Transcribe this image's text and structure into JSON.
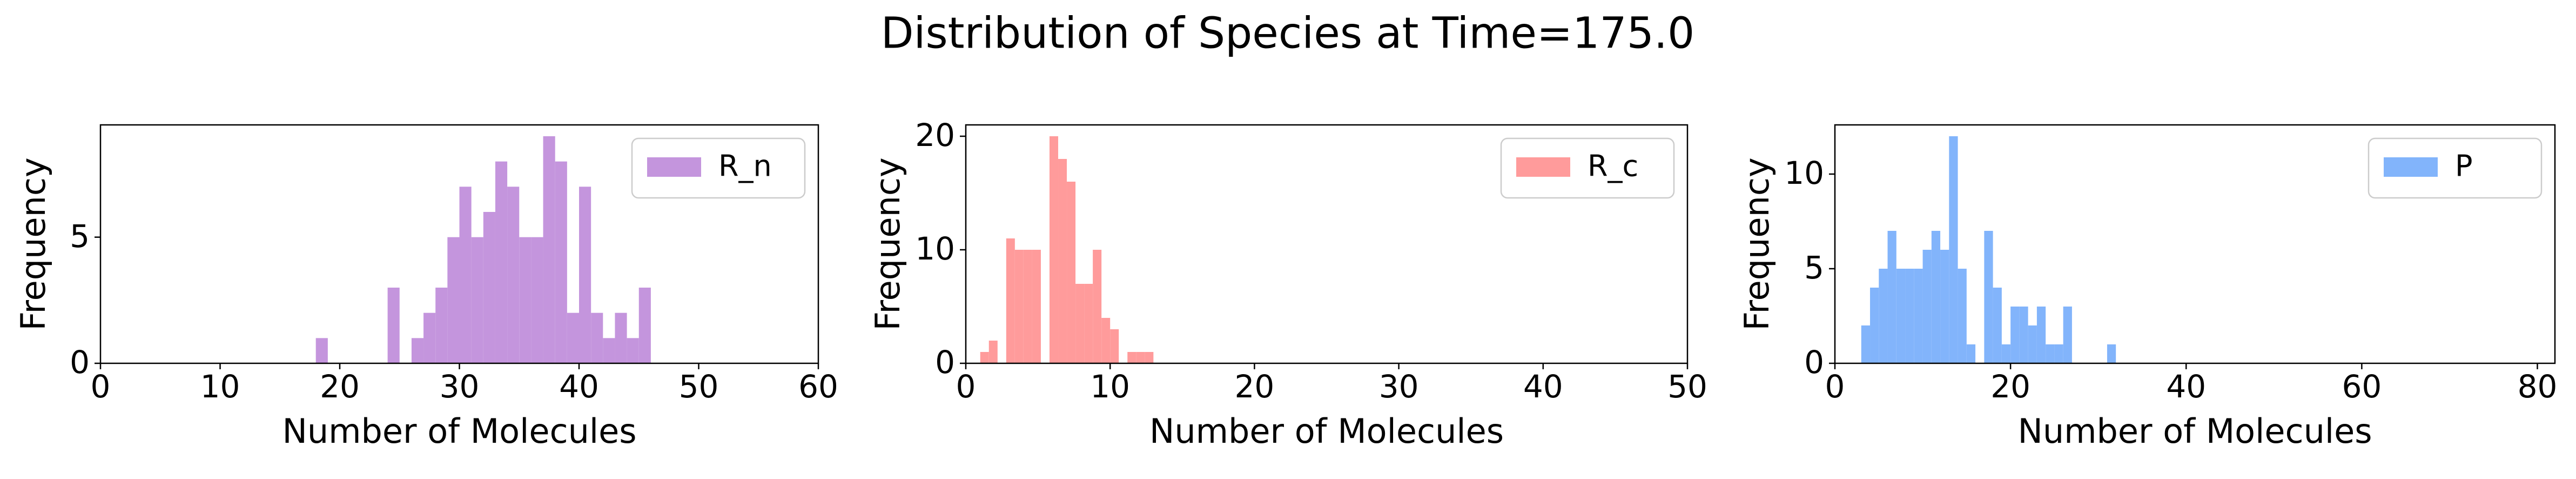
{
  "title": "Distribution of Species at Time=175.0",
  "chart_data": [
    {
      "type": "histogram",
      "xlabel": "Number of Molecules",
      "ylabel": "Frequency",
      "bins": [
        18,
        19,
        20,
        21,
        22,
        23,
        24,
        25,
        26,
        27,
        28,
        29,
        30,
        31,
        32,
        33,
        34,
        35,
        36,
        37,
        38,
        39,
        40,
        41,
        42,
        43,
        44,
        45,
        46
      ],
      "series": [
        {
          "name": "R_n",
          "color": "#c495dd",
          "values": [
            1,
            0,
            0,
            0,
            0,
            0,
            3,
            0,
            1,
            2,
            3,
            5,
            7,
            5,
            6,
            8,
            7,
            5,
            5,
            9,
            8,
            2,
            7,
            2,
            1,
            2,
            1,
            3
          ]
        }
      ],
      "xlim": [
        0,
        60
      ],
      "xticks": [
        0,
        10,
        20,
        30,
        40,
        50,
        60
      ],
      "ylim": [
        0,
        9.45
      ],
      "yticks": [
        0,
        5
      ],
      "legend": "upper right"
    },
    {
      "type": "histogram",
      "xlabel": "Number of Molecules",
      "ylabel": "Frequency",
      "bins": [
        1,
        1.6,
        2.2,
        2.8,
        3.4,
        4,
        4.6,
        5.2,
        5.8,
        6.4,
        7,
        7.6,
        8.2,
        8.8,
        9.4,
        10,
        10.6,
        11.2,
        11.8,
        12.4,
        13
      ],
      "series": [
        {
          "name": "R_c",
          "color": "#ff9b9b",
          "values": [
            1,
            2,
            0,
            11,
            10,
            10,
            10,
            0,
            20,
            18,
            16,
            7,
            7,
            10,
            4,
            3,
            0,
            1,
            1,
            1
          ]
        }
      ],
      "xlim": [
        0,
        50
      ],
      "xticks": [
        0,
        10,
        20,
        30,
        40,
        50
      ],
      "ylim": [
        0,
        21
      ],
      "yticks": [
        0,
        10,
        20
      ],
      "legend": "upper right"
    },
    {
      "type": "histogram",
      "xlabel": "Number of Molecules",
      "ylabel": "Frequency",
      "bins": [
        3,
        4,
        5,
        6,
        7,
        8,
        9,
        10,
        11,
        12,
        13,
        14,
        15,
        16,
        17,
        18,
        19,
        20,
        21,
        22,
        23,
        24,
        25,
        26,
        27,
        28,
        29,
        30,
        31,
        32
      ],
      "series": [
        {
          "name": "P",
          "color": "#82b4fb",
          "values": [
            2,
            4,
            5,
            7,
            5,
            5,
            5,
            6,
            7,
            6,
            12,
            5,
            1,
            0,
            7,
            4,
            1,
            3,
            3,
            2,
            3,
            1,
            1,
            3,
            0,
            0,
            0,
            0,
            1
          ]
        }
      ],
      "xlim": [
        0,
        82
      ],
      "xticks": [
        0,
        20,
        40,
        60,
        80
      ],
      "ylim": [
        0,
        12.6
      ],
      "yticks": [
        0,
        5,
        10
      ],
      "legend": "upper right"
    }
  ]
}
